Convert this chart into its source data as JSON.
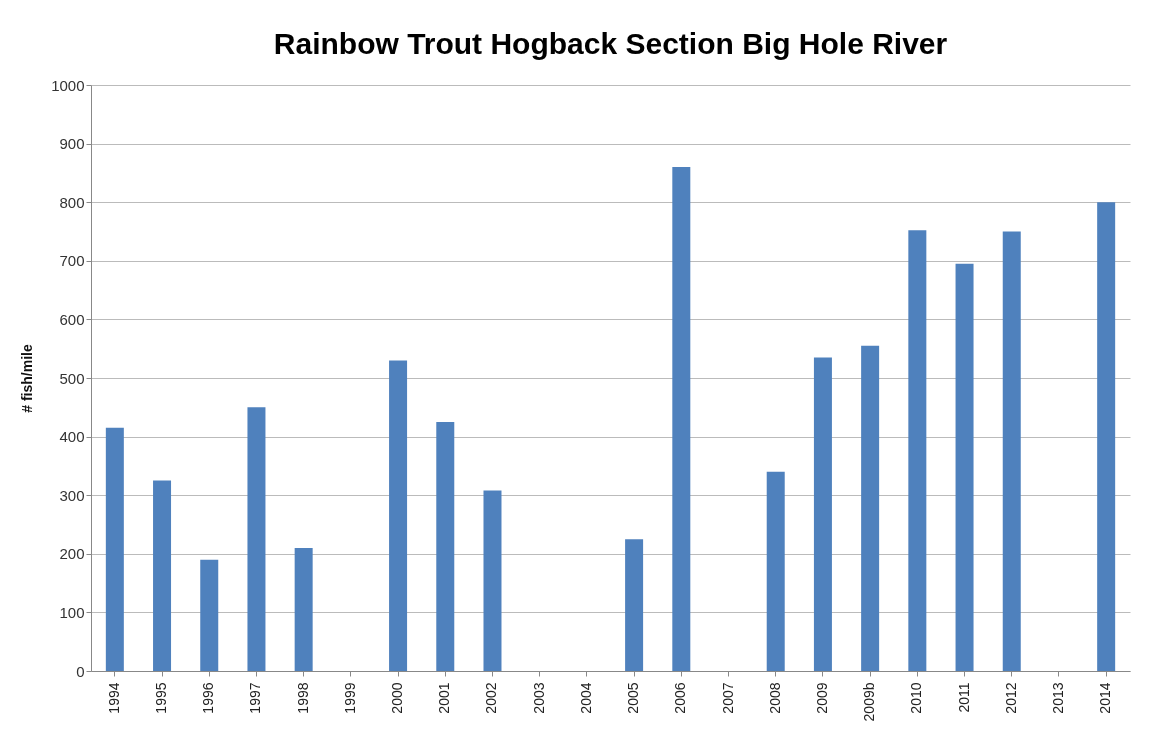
{
  "chart_data": {
    "type": "bar",
    "title": "Rainbow Trout Hogback Section Big Hole River",
    "ylabel": "# fish/mile",
    "categories": [
      "1994",
      "1995",
      "1996",
      "1997",
      "1998",
      "1999",
      "2000",
      "2001",
      "2002",
      "2003",
      "2004",
      "2005",
      "2006",
      "2007",
      "2008",
      "2009",
      "2009b",
      "2010",
      "2011",
      "2012",
      "2013",
      "2014"
    ],
    "series": [
      {
        "color": "#4f81bd",
        "values": [
          415,
          325,
          190,
          450,
          210,
          null,
          530,
          425,
          308,
          null,
          null,
          225,
          860,
          null,
          340,
          535,
          555,
          752,
          695,
          750,
          null,
          800
        ]
      }
    ],
    "ylim": [
      0,
      1000
    ],
    "yticks": [
      0,
      100,
      200,
      300,
      400,
      500,
      600,
      700,
      800,
      900,
      1000
    ],
    "grid": "y",
    "legend": false
  }
}
